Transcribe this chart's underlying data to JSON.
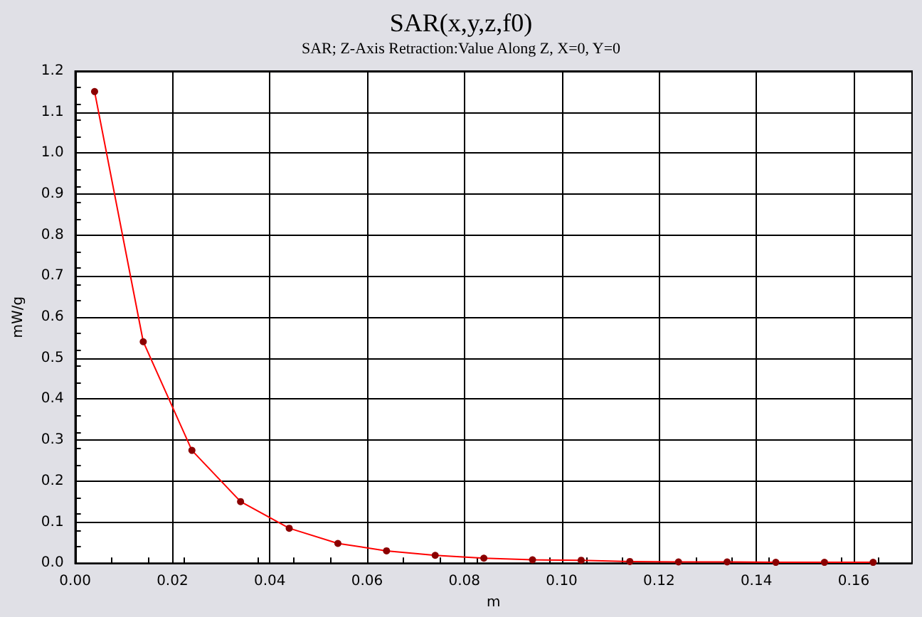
{
  "chart_data": {
    "type": "line",
    "title": "SAR(x,y,z,f0)",
    "subtitle": "SAR; Z-Axis Retraction:Value Along Z, X=0, Y=0",
    "xlabel": "m",
    "ylabel": "mW/g",
    "series": [
      {
        "color": "#ff0000",
        "x": [
          0.004,
          0.014,
          0.024,
          0.034,
          0.044,
          0.054,
          0.064,
          0.074,
          0.084,
          0.094,
          0.104,
          0.114,
          0.124,
          0.134,
          0.144,
          0.154,
          0.164
        ],
        "values": [
          1.15,
          0.54,
          0.275,
          0.15,
          0.085,
          0.048,
          0.03,
          0.019,
          0.012,
          0.008,
          0.007,
          0.004,
          0.003,
          0.003,
          0.002,
          0.002,
          0.002
        ]
      }
    ],
    "xlim": [
      0,
      0.172
    ],
    "xticks": [
      {
        "value": 0,
        "label": "0.00"
      },
      {
        "value": 0.02,
        "label": "0.02"
      },
      {
        "value": 0.04,
        "label": "0.04"
      },
      {
        "value": 0.06,
        "label": "0.06"
      },
      {
        "value": 0.08,
        "label": "0.08"
      },
      {
        "value": 0.1,
        "label": "0.10"
      },
      {
        "value": 0.12,
        "label": "0.12"
      },
      {
        "value": 0.14,
        "label": "0.14"
      },
      {
        "value": 0.16,
        "label": "0.16"
      }
    ],
    "ylim": [
      0,
      1.2
    ],
    "yticks": [
      {
        "value": 0,
        "label": "0.0"
      },
      {
        "value": 0.1,
        "label": "0.1"
      },
      {
        "value": 0.2,
        "label": "0.2"
      },
      {
        "value": 0.3,
        "label": "0.3"
      },
      {
        "value": 0.4,
        "label": "0.4"
      },
      {
        "value": 0.5,
        "label": "0.5"
      },
      {
        "value": 0.6,
        "label": "0.6"
      },
      {
        "value": 0.7,
        "label": "0.7"
      },
      {
        "value": 0.8,
        "label": "0.8"
      },
      {
        "value": 0.9,
        "label": "0.9"
      },
      {
        "value": 1.0,
        "label": "1.0"
      },
      {
        "value": 1.1,
        "label": "1.1"
      },
      {
        "value": 1.2,
        "label": "1.2"
      }
    ],
    "grid": true,
    "marker": "circle",
    "line_style": "solid"
  }
}
